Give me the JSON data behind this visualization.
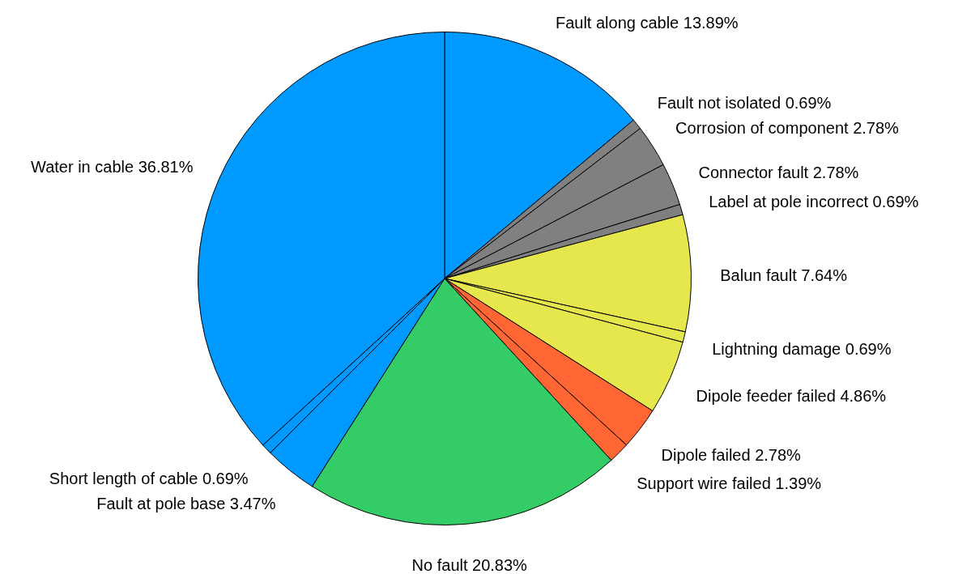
{
  "chart_data": {
    "type": "pie",
    "categories": [
      "Fault along cable",
      "Fault not isolated",
      "Corrosion of component",
      "Connector fault",
      "Label at pole incorrect",
      "Balun fault",
      "Lightning damage",
      "Dipole feeder failed",
      "Dipole failed",
      "Support wire failed",
      "No fault",
      "Fault at pole base",
      "Short length of cable",
      "Water in cable"
    ],
    "values": [
      13.89,
      0.69,
      2.78,
      2.78,
      0.69,
      7.64,
      0.69,
      4.86,
      2.78,
      1.39,
      20.83,
      3.47,
      0.69,
      36.81
    ],
    "value_labels": [
      "13.89%",
      "0.69%",
      "2.78%",
      "2.78%",
      "0.69%",
      "7.64%",
      "0.69%",
      "4.86%",
      "2.78%",
      "1.39%",
      "20.83%",
      "3.47%",
      "0.69%",
      "36.81%"
    ],
    "colors": [
      "#0099ff",
      "#808080",
      "#808080",
      "#808080",
      "#808080",
      "#e6e64d",
      "#e6e64d",
      "#e6e64d",
      "#ff6633",
      "#ff6633",
      "#33cc66",
      "#0099ff",
      "#0099ff",
      "#0099ff"
    ]
  }
}
